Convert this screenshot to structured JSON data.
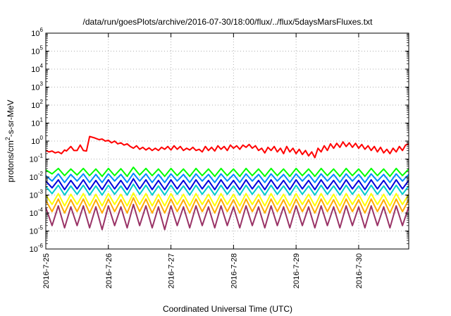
{
  "chart_data": {
    "type": "line",
    "title": "/data/run/goesPlots/archive/2016-07-30/18:00/flux/../flux/5daysMarsFluxes.txt",
    "xlabel": "Coordinated Universal Time (UTC)",
    "ylabel_main": "protons/cm",
    "ylabel_sup": "2",
    "ylabel_tail": "-s-sr-MeV",
    "yscale": "log",
    "ylim": [
      1e-06,
      1000000.0
    ],
    "xlim_days": [
      0,
      5.8
    ],
    "grid": true,
    "legend": "none",
    "y_ticks": [
      {
        "exp": -6,
        "base": "10",
        "sup": "-6"
      },
      {
        "exp": -5,
        "base": "10",
        "sup": "-5"
      },
      {
        "exp": -4,
        "base": "10",
        "sup": "-4"
      },
      {
        "exp": -3,
        "base": "10",
        "sup": "-3"
      },
      {
        "exp": -2,
        "base": "10",
        "sup": "-2"
      },
      {
        "exp": -1,
        "base": "10",
        "sup": "-1"
      },
      {
        "exp": 0,
        "base": "10",
        "sup": "0"
      },
      {
        "exp": 1,
        "base": "10",
        "sup": "1"
      },
      {
        "exp": 2,
        "base": "10",
        "sup": "2"
      },
      {
        "exp": 3,
        "base": "10",
        "sup": "3"
      },
      {
        "exp": 4,
        "base": "10",
        "sup": "4"
      },
      {
        "exp": 5,
        "base": "10",
        "sup": "5"
      },
      {
        "exp": 6,
        "base": "10",
        "sup": "6"
      }
    ],
    "x_ticks": [
      {
        "day": 0,
        "label": "2016-7-25"
      },
      {
        "day": 1,
        "label": "2016-7-26"
      },
      {
        "day": 2,
        "label": "2016-7-27"
      },
      {
        "day": 3,
        "label": "2016-7-28"
      },
      {
        "day": 4,
        "label": "2016-7-29"
      },
      {
        "day": 5,
        "label": "2016-7-30"
      }
    ],
    "series": [
      {
        "color": "#ff0000",
        "x": [
          0,
          0.05,
          0.1,
          0.15,
          0.2,
          0.25,
          0.3,
          0.33,
          0.4,
          0.45,
          0.5,
          0.55,
          0.6,
          0.65,
          0.7,
          0.78,
          0.85,
          0.9,
          0.95,
          1.0,
          1.05,
          1.1,
          1.15,
          1.2,
          1.25,
          1.3,
          1.35,
          1.4,
          1.45,
          1.5,
          1.55,
          1.6,
          1.65,
          1.7,
          1.75,
          1.8,
          1.85,
          1.9,
          1.95,
          2.0,
          2.05,
          2.1,
          2.15,
          2.2,
          2.25,
          2.3,
          2.35,
          2.4,
          2.45,
          2.5,
          2.55,
          2.6,
          2.65,
          2.7,
          2.75,
          2.8,
          2.85,
          2.9,
          2.95,
          3.0,
          3.05,
          3.1,
          3.15,
          3.2,
          3.25,
          3.3,
          3.35,
          3.4,
          3.45,
          3.5,
          3.55,
          3.6,
          3.65,
          3.7,
          3.75,
          3.8,
          3.85,
          3.9,
          3.95,
          4.0,
          4.05,
          4.1,
          4.15,
          4.2,
          4.25,
          4.3,
          4.35,
          4.4,
          4.45,
          4.5,
          4.55,
          4.6,
          4.65,
          4.7,
          4.75,
          4.8,
          4.85,
          4.9,
          4.95,
          5.0,
          5.05,
          5.1,
          5.15,
          5.2,
          5.25,
          5.3,
          5.35,
          5.4,
          5.45,
          5.5,
          5.55,
          5.6,
          5.65,
          5.7,
          5.75,
          5.8
        ],
        "y": [
          0.3,
          0.25,
          0.28,
          0.22,
          0.25,
          0.2,
          0.32,
          0.28,
          0.5,
          0.3,
          0.3,
          0.6,
          0.3,
          0.28,
          1.8,
          1.5,
          1.2,
          1.3,
          1.0,
          1.1,
          0.8,
          1.0,
          0.7,
          0.8,
          0.6,
          0.7,
          0.5,
          0.4,
          0.55,
          0.35,
          0.45,
          0.32,
          0.42,
          0.3,
          0.4,
          0.3,
          0.45,
          0.35,
          0.5,
          0.32,
          0.55,
          0.35,
          0.5,
          0.3,
          0.4,
          0.32,
          0.45,
          0.3,
          0.35,
          0.25,
          0.5,
          0.3,
          0.45,
          0.28,
          0.55,
          0.35,
          0.5,
          0.3,
          0.6,
          0.4,
          0.55,
          0.35,
          0.6,
          0.45,
          0.65,
          0.4,
          0.55,
          0.3,
          0.4,
          0.22,
          0.45,
          0.3,
          0.5,
          0.25,
          0.4,
          0.2,
          0.5,
          0.25,
          0.4,
          0.2,
          0.35,
          0.18,
          0.3,
          0.15,
          0.25,
          0.12,
          0.4,
          0.25,
          0.55,
          0.3,
          0.7,
          0.4,
          0.75,
          0.45,
          0.9,
          0.5,
          0.8,
          0.45,
          0.75,
          0.4,
          0.65,
          0.35,
          0.55,
          0.3,
          0.5,
          0.25,
          0.45,
          0.22,
          0.35,
          0.2,
          0.4,
          0.25,
          0.5,
          0.3,
          0.6,
          0.7
        ]
      },
      {
        "color": "#00ff00",
        "x": [
          0,
          0.1,
          0.2,
          0.3,
          0.4,
          0.5,
          0.6,
          0.7,
          0.8,
          0.9,
          1.0,
          1.1,
          1.2,
          1.3,
          1.4,
          1.5,
          1.6,
          1.7,
          1.8,
          1.9,
          2.0,
          2.1,
          2.2,
          2.3,
          2.4,
          2.5,
          2.6,
          2.7,
          2.8,
          2.9,
          3.0,
          3.1,
          3.2,
          3.3,
          3.4,
          3.5,
          3.6,
          3.7,
          3.8,
          3.9,
          4.0,
          4.1,
          4.2,
          4.3,
          4.4,
          4.5,
          4.6,
          4.7,
          4.8,
          4.9,
          5.0,
          5.1,
          5.2,
          5.3,
          5.4,
          5.5,
          5.6,
          5.7,
          5.8
        ],
        "y": [
          0.025,
          0.015,
          0.03,
          0.012,
          0.028,
          0.013,
          0.03,
          0.012,
          0.028,
          0.011,
          0.03,
          0.012,
          0.029,
          0.011,
          0.035,
          0.013,
          0.03,
          0.012,
          0.028,
          0.011,
          0.03,
          0.012,
          0.028,
          0.011,
          0.03,
          0.012,
          0.028,
          0.011,
          0.03,
          0.012,
          0.028,
          0.011,
          0.03,
          0.012,
          0.028,
          0.011,
          0.03,
          0.012,
          0.028,
          0.011,
          0.03,
          0.012,
          0.028,
          0.011,
          0.03,
          0.012,
          0.028,
          0.011,
          0.03,
          0.012,
          0.028,
          0.011,
          0.03,
          0.012,
          0.028,
          0.011,
          0.03,
          0.012,
          0.028
        ]
      },
      {
        "color": "#0088ff",
        "x": [
          0,
          0.1,
          0.2,
          0.3,
          0.4,
          0.5,
          0.6,
          0.7,
          0.8,
          0.9,
          1.0,
          1.1,
          1.2,
          1.3,
          1.4,
          1.5,
          1.6,
          1.7,
          1.8,
          1.9,
          2.0,
          2.1,
          2.2,
          2.3,
          2.4,
          2.5,
          2.6,
          2.7,
          2.8,
          2.9,
          3.0,
          3.1,
          3.2,
          3.3,
          3.4,
          3.5,
          3.6,
          3.7,
          3.8,
          3.9,
          4.0,
          4.1,
          4.2,
          4.3,
          4.4,
          4.5,
          4.6,
          4.7,
          4.8,
          4.9,
          5.0,
          5.1,
          5.2,
          5.3,
          5.4,
          5.5,
          5.6,
          5.7,
          5.8
        ],
        "y": [
          0.012,
          0.006,
          0.015,
          0.005,
          0.014,
          0.006,
          0.015,
          0.005,
          0.014,
          0.005,
          0.015,
          0.006,
          0.014,
          0.005,
          0.016,
          0.006,
          0.015,
          0.005,
          0.014,
          0.005,
          0.015,
          0.006,
          0.014,
          0.005,
          0.015,
          0.006,
          0.014,
          0.005,
          0.015,
          0.006,
          0.014,
          0.005,
          0.015,
          0.006,
          0.014,
          0.005,
          0.015,
          0.006,
          0.014,
          0.005,
          0.015,
          0.006,
          0.014,
          0.005,
          0.015,
          0.006,
          0.014,
          0.005,
          0.015,
          0.006,
          0.014,
          0.005,
          0.015,
          0.006,
          0.014,
          0.005,
          0.015,
          0.006,
          0.014
        ]
      },
      {
        "color": "#0000dd",
        "x": [
          0,
          0.1,
          0.2,
          0.3,
          0.4,
          0.5,
          0.6,
          0.7,
          0.8,
          0.9,
          1.0,
          1.1,
          1.2,
          1.3,
          1.4,
          1.5,
          1.6,
          1.7,
          1.8,
          1.9,
          2.0,
          2.1,
          2.2,
          2.3,
          2.4,
          2.5,
          2.6,
          2.7,
          2.8,
          2.9,
          3.0,
          3.1,
          3.2,
          3.3,
          3.4,
          3.5,
          3.6,
          3.7,
          3.8,
          3.9,
          4.0,
          4.1,
          4.2,
          4.3,
          4.4,
          4.5,
          4.6,
          4.7,
          4.8,
          4.9,
          5.0,
          5.1,
          5.2,
          5.3,
          5.4,
          5.5,
          5.6,
          5.7,
          5.8
        ],
        "y": [
          0.006,
          0.0025,
          0.007,
          0.002,
          0.0065,
          0.0022,
          0.007,
          0.002,
          0.0065,
          0.002,
          0.007,
          0.0022,
          0.0065,
          0.002,
          0.008,
          0.0022,
          0.007,
          0.002,
          0.0065,
          0.002,
          0.007,
          0.0022,
          0.0065,
          0.002,
          0.007,
          0.0022,
          0.0065,
          0.002,
          0.007,
          0.0022,
          0.0065,
          0.002,
          0.007,
          0.0022,
          0.0065,
          0.002,
          0.007,
          0.0022,
          0.0065,
          0.002,
          0.007,
          0.0022,
          0.0065,
          0.002,
          0.007,
          0.0022,
          0.0065,
          0.002,
          0.007,
          0.0022,
          0.0065,
          0.002,
          0.007,
          0.0022,
          0.0065,
          0.002,
          0.007,
          0.0022,
          0.0065
        ]
      },
      {
        "color": "#00cccc",
        "x": [
          0,
          0.1,
          0.2,
          0.3,
          0.4,
          0.5,
          0.6,
          0.7,
          0.8,
          0.9,
          1.0,
          1.1,
          1.2,
          1.3,
          1.4,
          1.5,
          1.6,
          1.7,
          1.8,
          1.9,
          2.0,
          2.1,
          2.2,
          2.3,
          2.4,
          2.5,
          2.6,
          2.7,
          2.8,
          2.9,
          3.0,
          3.1,
          3.2,
          3.3,
          3.4,
          3.5,
          3.6,
          3.7,
          3.8,
          3.9,
          4.0,
          4.1,
          4.2,
          4.3,
          4.4,
          4.5,
          4.6,
          4.7,
          4.8,
          4.9,
          5.0,
          5.1,
          5.2,
          5.3,
          5.4,
          5.5,
          5.6,
          5.7,
          5.8
        ],
        "y": [
          0.003,
          0.0012,
          0.0035,
          0.001,
          0.0032,
          0.0011,
          0.0035,
          0.001,
          0.0032,
          0.001,
          0.0035,
          0.0011,
          0.0032,
          0.001,
          0.004,
          0.0011,
          0.0035,
          0.001,
          0.0032,
          0.001,
          0.0035,
          0.0011,
          0.0032,
          0.001,
          0.0035,
          0.0011,
          0.0032,
          0.001,
          0.0035,
          0.0011,
          0.0032,
          0.001,
          0.0035,
          0.0011,
          0.0032,
          0.001,
          0.0035,
          0.0011,
          0.0032,
          0.001,
          0.0035,
          0.0011,
          0.0032,
          0.001,
          0.0035,
          0.0011,
          0.0032,
          0.001,
          0.0035,
          0.0011,
          0.0032,
          0.001,
          0.0035,
          0.0011,
          0.0032,
          0.001,
          0.0035,
          0.0011,
          0.0032
        ]
      },
      {
        "color": "#ffff00",
        "x": [
          0,
          0.1,
          0.2,
          0.3,
          0.4,
          0.5,
          0.6,
          0.7,
          0.8,
          0.9,
          1.0,
          1.1,
          1.2,
          1.3,
          1.4,
          1.5,
          1.6,
          1.7,
          1.8,
          1.9,
          2.0,
          2.1,
          2.2,
          2.3,
          2.4,
          2.5,
          2.6,
          2.7,
          2.8,
          2.9,
          3.0,
          3.1,
          3.2,
          3.3,
          3.4,
          3.5,
          3.6,
          3.7,
          3.8,
          3.9,
          4.0,
          4.1,
          4.2,
          4.3,
          4.4,
          4.5,
          4.6,
          4.7,
          4.8,
          4.9,
          5.0,
          5.1,
          5.2,
          5.3,
          5.4,
          5.5,
          5.6,
          5.7,
          5.8
        ],
        "y": [
          0.001,
          0.0003,
          0.0012,
          0.00025,
          0.0011,
          0.0003,
          0.0012,
          0.00025,
          0.0011,
          0.00025,
          0.0012,
          0.0003,
          0.0011,
          0.00025,
          0.0013,
          0.0003,
          0.0012,
          0.00025,
          0.0011,
          0.00025,
          0.0012,
          0.0003,
          0.0011,
          0.00025,
          0.0012,
          0.0003,
          0.0011,
          0.00025,
          0.0012,
          0.0003,
          0.0011,
          0.00025,
          0.0012,
          0.0003,
          0.0011,
          0.00025,
          0.0012,
          0.0003,
          0.0011,
          0.00025,
          0.0012,
          0.0003,
          0.0011,
          0.00025,
          0.0012,
          0.0003,
          0.0011,
          0.00025,
          0.0012,
          0.0003,
          0.0011,
          0.00025,
          0.0012,
          0.0003,
          0.0011,
          0.00025,
          0.0012,
          0.0003,
          0.0011
        ]
      },
      {
        "color": "#ffaa00",
        "x": [
          0,
          0.1,
          0.2,
          0.3,
          0.4,
          0.5,
          0.6,
          0.7,
          0.8,
          0.9,
          1.0,
          1.1,
          1.2,
          1.3,
          1.4,
          1.5,
          1.6,
          1.7,
          1.8,
          1.9,
          2.0,
          2.1,
          2.2,
          2.3,
          2.4,
          2.5,
          2.6,
          2.7,
          2.8,
          2.9,
          3.0,
          3.1,
          3.2,
          3.3,
          3.4,
          3.5,
          3.6,
          3.7,
          3.8,
          3.9,
          4.0,
          4.1,
          4.2,
          4.3,
          4.4,
          4.5,
          4.6,
          4.7,
          4.8,
          4.9,
          5.0,
          5.1,
          5.2,
          5.3,
          5.4,
          5.5,
          5.6,
          5.7,
          5.8
        ],
        "y": [
          0.0005,
          0.00012,
          0.0006,
          0.0001,
          0.00055,
          0.00012,
          0.0006,
          0.0001,
          0.00055,
          0.0001,
          0.0006,
          0.00012,
          0.00055,
          0.0001,
          0.0007,
          0.00012,
          0.0006,
          0.0001,
          0.00055,
          0.0001,
          0.0006,
          0.00012,
          0.00055,
          0.0001,
          0.0006,
          0.00012,
          0.00055,
          0.0001,
          0.0006,
          0.00012,
          0.00055,
          0.0001,
          0.0006,
          0.00012,
          0.00055,
          0.0001,
          0.0006,
          0.00012,
          0.00055,
          0.0001,
          0.0006,
          0.00012,
          0.00055,
          0.0001,
          0.0006,
          0.00012,
          0.00055,
          0.0001,
          0.0006,
          0.00012,
          0.00055,
          0.0001,
          0.0006,
          0.00012,
          0.00055,
          0.0001,
          0.0006,
          0.00012,
          0.00055
        ]
      },
      {
        "color": "#993366",
        "x": [
          0,
          0.1,
          0.2,
          0.3,
          0.4,
          0.5,
          0.6,
          0.7,
          0.8,
          0.9,
          1.0,
          1.1,
          1.2,
          1.3,
          1.4,
          1.5,
          1.6,
          1.7,
          1.8,
          1.9,
          2.0,
          2.1,
          2.2,
          2.3,
          2.4,
          2.5,
          2.6,
          2.7,
          2.8,
          2.9,
          3.0,
          3.1,
          3.2,
          3.3,
          3.4,
          3.5,
          3.6,
          3.7,
          3.8,
          3.9,
          4.0,
          4.1,
          4.2,
          4.3,
          4.4,
          4.5,
          4.6,
          4.7,
          4.8,
          4.9,
          5.0,
          5.1,
          5.2,
          5.3,
          5.4,
          5.5,
          5.6,
          5.7,
          5.8
        ],
        "y": [
          0.0002,
          2e-05,
          0.00025,
          1.5e-05,
          0.00022,
          2e-05,
          0.00025,
          1.5e-05,
          0.00022,
          1.2e-05,
          0.00025,
          2e-05,
          0.00022,
          1.5e-05,
          0.0003,
          2e-05,
          0.00025,
          1.5e-05,
          0.00022,
          1.2e-05,
          0.00025,
          2e-05,
          0.00022,
          1.5e-05,
          0.00025,
          2e-05,
          0.00022,
          1.5e-05,
          0.00025,
          2e-05,
          0.00022,
          1.5e-05,
          0.00025,
          2e-05,
          0.00022,
          1.5e-05,
          0.00025,
          2e-05,
          0.00022,
          1.5e-05,
          0.00025,
          2e-05,
          0.00022,
          1.5e-05,
          0.00025,
          2e-05,
          0.00022,
          1.5e-05,
          0.00025,
          2e-05,
          0.00022,
          1.5e-05,
          0.00025,
          2e-05,
          0.00022,
          1.5e-05,
          0.00025,
          2e-05,
          0.00022
        ]
      }
    ]
  }
}
